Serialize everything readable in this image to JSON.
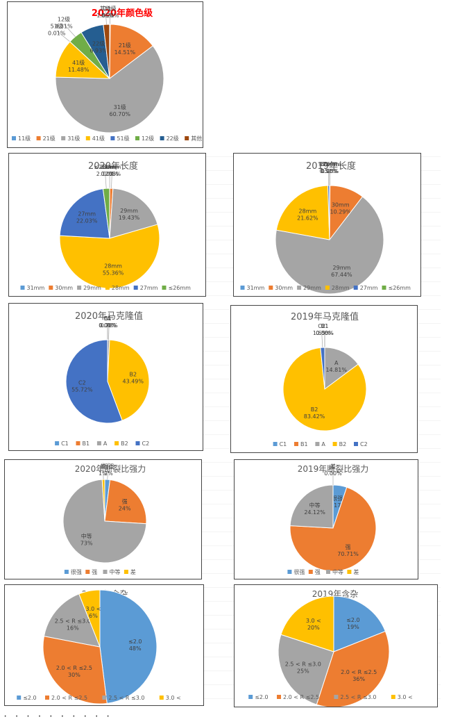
{
  "footer_dots": "· · · · · · · · · ·",
  "chart_data": [
    {
      "id": "color-2020",
      "type": "pie",
      "title": "2020年颜色级",
      "title_color": "#ff0000",
      "categories": [
        "11级",
        "21级",
        "31级",
        "41级",
        "51级",
        "12级",
        "22级",
        "其他"
      ],
      "values": [
        0.2,
        14.51,
        60.7,
        11.48,
        0.01,
        4.31,
        6.93,
        1.86
      ],
      "labels": [
        "0.20%",
        "14.51%",
        "60.70%",
        "11.48%",
        "0.01%",
        "4.31%",
        "6.93%",
        "1.86%"
      ],
      "colors": [
        "#5b9bd5",
        "#ed7d31",
        "#a5a5a5",
        "#ffc000",
        "#4472c4",
        "#70ad47",
        "#255e91",
        "#9e480e"
      ],
      "legend": "bottom"
    },
    {
      "id": "length-2020",
      "type": "pie",
      "title": "2020年长度",
      "categories": [
        "31mm",
        "30mm",
        "29mm",
        "28mm",
        "27mm",
        "≤26mm"
      ],
      "values": [
        0.03,
        1.05,
        19.43,
        55.36,
        22.03,
        2.12
      ],
      "labels": [
        "0.03%",
        "1.05%",
        "19.43%",
        "55.36%",
        "22.03%",
        "2.12%"
      ],
      "colors": [
        "#5b9bd5",
        "#ed7d31",
        "#a5a5a5",
        "#ffc000",
        "#4472c4",
        "#70ad47"
      ],
      "legend": "bottom"
    },
    {
      "id": "length-2019",
      "type": "pie",
      "title": "2019年长度",
      "categories": [
        "31mm",
        "30mm",
        "29mm",
        "28mm",
        "27mm",
        "≤26mm"
      ],
      "values": [
        0.13,
        10.29,
        67.44,
        21.62,
        0.52,
        0.0
      ],
      "labels": [
        "0.13%",
        "10.29%",
        "67.44%",
        "21.62%",
        "0.52%",
        "0.00%"
      ],
      "colors": [
        "#5b9bd5",
        "#ed7d31",
        "#a5a5a5",
        "#ffc000",
        "#4472c4",
        "#70ad47"
      ],
      "legend": "bottom"
    },
    {
      "id": "mic-2020",
      "type": "pie",
      "title": "2020年马克隆值",
      "categories": [
        "C1",
        "B1",
        "A",
        "B2",
        "C2"
      ],
      "values": [
        0.0,
        0.01,
        0.78,
        43.49,
        55.72
      ],
      "labels": [
        "0.00%",
        "0.01%",
        "0.78%",
        "43.49%",
        "55.72%"
      ],
      "colors": [
        "#5b9bd5",
        "#ed7d31",
        "#a5a5a5",
        "#ffc000",
        "#4472c4"
      ],
      "legend": "bottom"
    },
    {
      "id": "mic-2019",
      "type": "pie",
      "title": "2019年马克隆值",
      "categories": [
        "C1",
        "B1",
        "A",
        "B2",
        "C2"
      ],
      "values": [
        0.0,
        0.0,
        14.81,
        83.42,
        1.65
      ],
      "labels": [
        "0.00%",
        "0.00%",
        "14.81%",
        "83.42%",
        "1.65%"
      ],
      "colors": [
        "#5b9bd5",
        "#ed7d31",
        "#a5a5a5",
        "#ffc000",
        "#4472c4"
      ],
      "legend": "bottom"
    },
    {
      "id": "strength-2020",
      "type": "pie",
      "title": "2020年断裂比强力",
      "categories": [
        "很强",
        "强",
        "中等",
        "差"
      ],
      "values": [
        2,
        24,
        73,
        1
      ],
      "labels": [
        "2%",
        "24%",
        "73%",
        "1%"
      ],
      "colors": [
        "#5b9bd5",
        "#ed7d31",
        "#a5a5a5",
        "#ffc000"
      ],
      "legend": "bottom"
    },
    {
      "id": "strength-2019",
      "type": "pie",
      "title": "2019年断裂比强力",
      "categories": [
        "很强",
        "强",
        "中等",
        "差"
      ],
      "values": [
        5.17,
        70.71,
        24.12,
        0.0
      ],
      "labels": [
        "5.17%",
        "70.71%",
        "24.12%",
        "0.00%"
      ],
      "colors": [
        "#5b9bd5",
        "#ed7d31",
        "#a5a5a5",
        "#ffc000"
      ],
      "legend": "bottom"
    },
    {
      "id": "trash-2020",
      "type": "pie",
      "title": "2020年含杂",
      "categories": [
        "≤2.0",
        "2.0 < R ≤2.5",
        "2.5 < R ≤3.0",
        "3.0 <"
      ],
      "values": [
        48,
        30,
        16,
        6
      ],
      "labels": [
        "48%",
        "30%",
        "16%",
        "6%"
      ],
      "colors": [
        "#5b9bd5",
        "#ed7d31",
        "#a5a5a5",
        "#ffc000"
      ],
      "legend": "bottom"
    },
    {
      "id": "trash-2019",
      "type": "pie",
      "title": "2019年含杂",
      "categories": [
        "≤2.0",
        "2.0 < R ≤2.5",
        "2.5 < R ≤3.0",
        "3.0 <"
      ],
      "values": [
        19,
        36,
        25,
        20
      ],
      "labels": [
        "19%",
        "36%",
        "25%",
        "20%"
      ],
      "colors": [
        "#5b9bd5",
        "#ed7d31",
        "#a5a5a5",
        "#ffc000"
      ],
      "legend": "bottom"
    }
  ]
}
